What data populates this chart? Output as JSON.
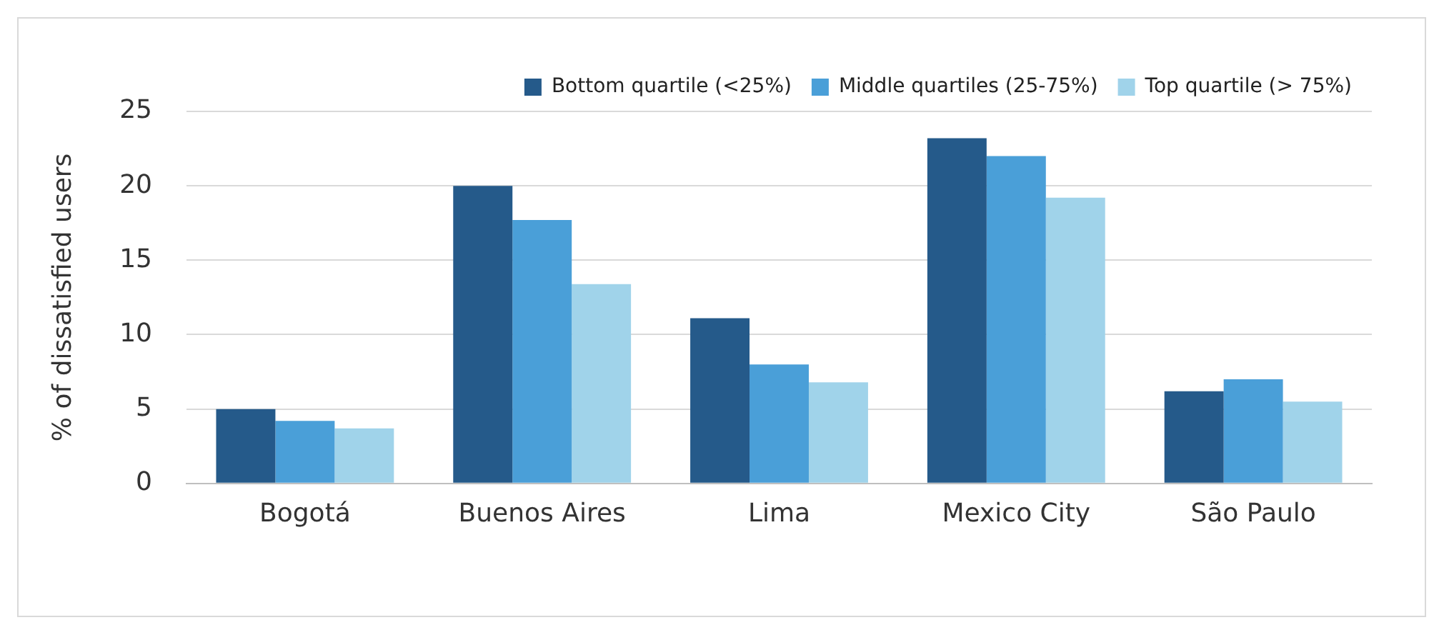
{
  "chart_data": {
    "type": "bar",
    "ylabel": "% of dissatisfied users",
    "categories": [
      "Bogotá",
      "Buenos Aires",
      "Lima",
      "Mexico City",
      "São Paulo"
    ],
    "series": [
      {
        "name": "Bottom quartile (<25%)",
        "color": "#255a8a",
        "values": [
          5.0,
          20.0,
          11.1,
          23.2,
          6.2
        ]
      },
      {
        "name": "Middle quartiles (25-75%)",
        "color": "#4a9fd8",
        "values": [
          4.2,
          17.7,
          8.0,
          22.0,
          7.0
        ]
      },
      {
        "name": "Top quartile (> 75%)",
        "color": "#a0d3ea",
        "values": [
          3.7,
          13.4,
          6.8,
          19.2,
          5.5
        ]
      }
    ],
    "ylim": [
      0,
      25
    ],
    "yticks": [
      0,
      5,
      10,
      15,
      20,
      25
    ],
    "grid": "y",
    "legend": "top right"
  }
}
